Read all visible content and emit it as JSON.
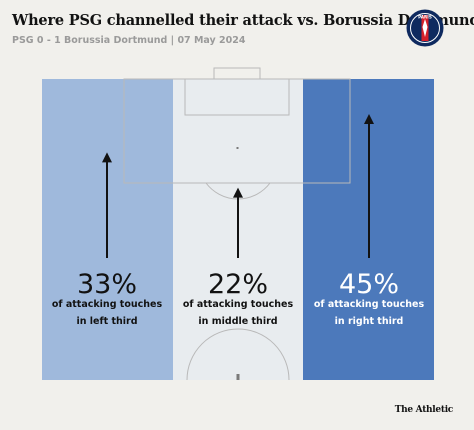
{
  "title": "Where PSG channelled their attack vs. Borussia Dortmund",
  "subtitle": "PSG 0 - 1 Borussia Dortmund | 07 May 2024",
  "badge": {
    "icon": "psg-crest-icon",
    "text": "PARIS",
    "colors": {
      "navy": "#0f2a5f",
      "red": "#d6202a",
      "white": "#ffffff"
    }
  },
  "colors": {
    "left": "#9fb9dc",
    "middle": "#e8ecef",
    "right": "#4c79bb",
    "lines": "#b9b9b9",
    "arrow": "#121212",
    "background": "#f1f0ec"
  },
  "chart_data": {
    "type": "bar",
    "categories": [
      "left third",
      "middle third",
      "right third"
    ],
    "values": [
      33,
      22,
      45
    ],
    "unit": "%",
    "value_labels": [
      "33%",
      "22%",
      "45%"
    ],
    "label_line1": [
      "of attacking touches",
      "of attacking touches",
      "of attacking touches"
    ],
    "label_line2": [
      "in left third",
      "in middle third",
      "in right third"
    ]
  },
  "footer": "The Athletic"
}
